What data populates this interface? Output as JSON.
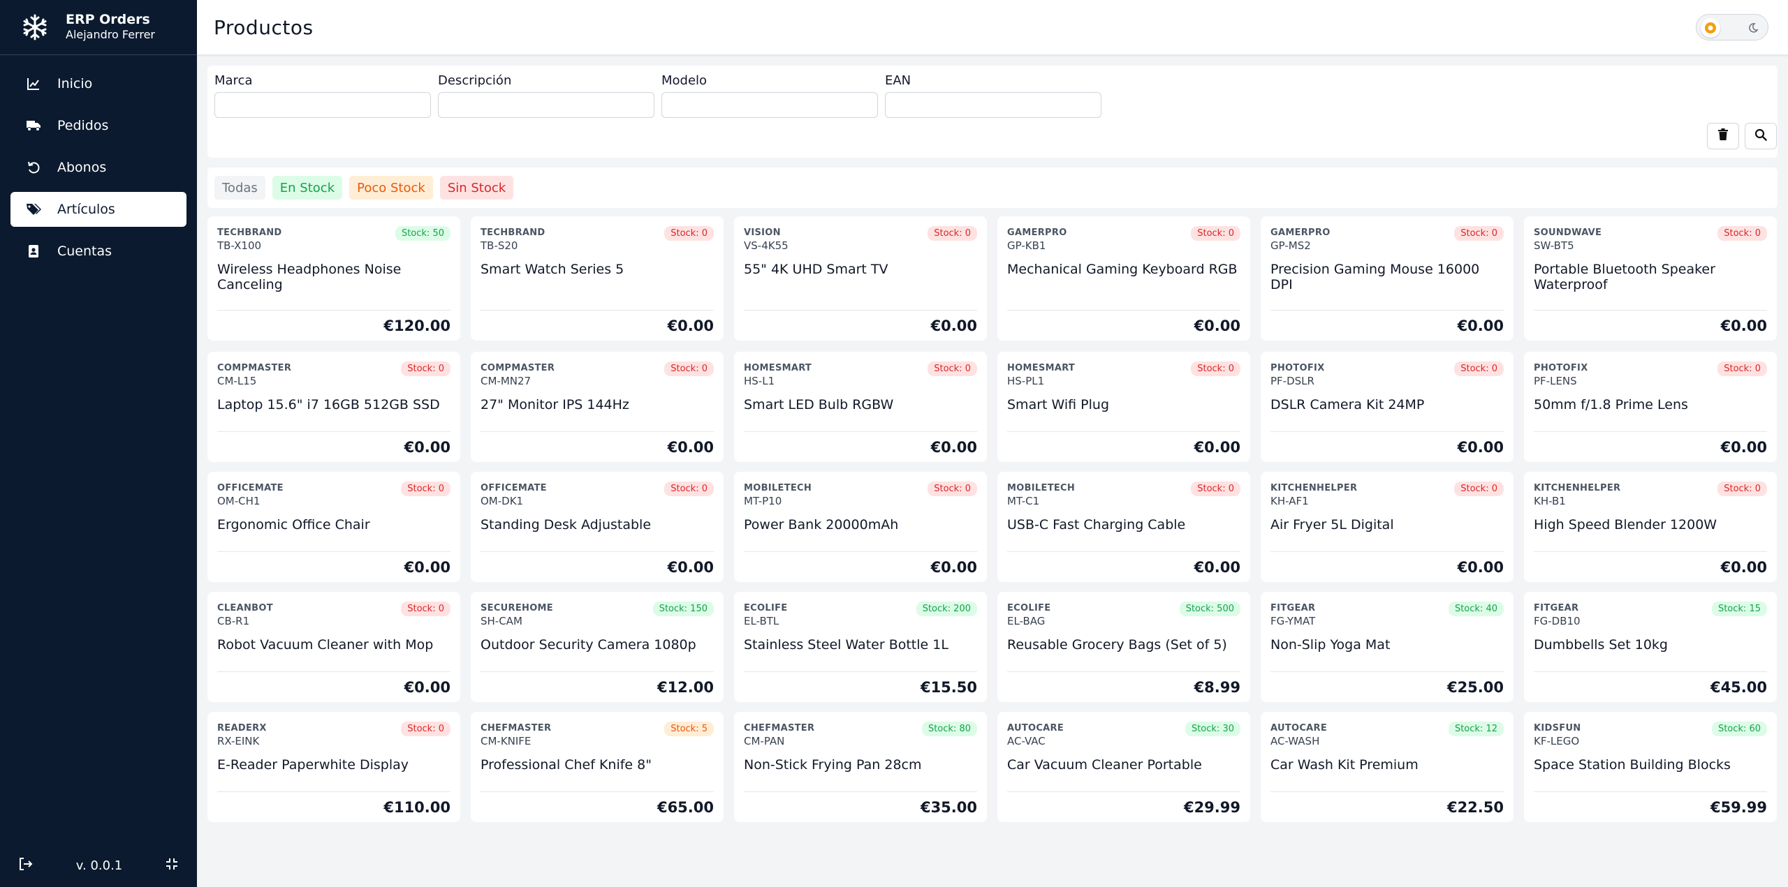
{
  "app": {
    "title": "ERP Orders",
    "user": "Alejandro Ferrer",
    "version": "v. 0.0.1"
  },
  "sidebar": {
    "items": [
      {
        "label": "Inicio",
        "icon": "chart-line-icon",
        "active": false
      },
      {
        "label": "Pedidos",
        "icon": "truck-icon",
        "active": false
      },
      {
        "label": "Abonos",
        "icon": "undo-icon",
        "active": false
      },
      {
        "label": "Artículos",
        "icon": "tags-icon",
        "active": true
      },
      {
        "label": "Cuentas",
        "icon": "contact-book-icon",
        "active": false
      }
    ]
  },
  "header": {
    "title": "Productos"
  },
  "filters": {
    "fields": [
      {
        "label": "Marca",
        "value": "",
        "placeholder": ""
      },
      {
        "label": "Descripción",
        "value": "",
        "placeholder": ""
      },
      {
        "label": "Modelo",
        "value": "",
        "placeholder": ""
      },
      {
        "label": "EAN",
        "value": "",
        "placeholder": ""
      }
    ]
  },
  "chips": [
    {
      "label": "Todas",
      "bg": "#f3f4f6",
      "color": "#6b7280"
    },
    {
      "label": "En Stock",
      "bg": "#dcfce7",
      "color": "#16a34a"
    },
    {
      "label": "Poco Stock",
      "bg": "#ffedd5",
      "color": "#ea580c"
    },
    {
      "label": "Sin Stock",
      "bg": "#fee2e2",
      "color": "#dc2626"
    }
  ],
  "products": [
    {
      "brand": "TECHBRAND",
      "model": "TB-X100",
      "desc": "Wireless Headphones Noise Canceling",
      "stock": "Stock: 50",
      "status": "in",
      "price": "€120.00"
    },
    {
      "brand": "TECHBRAND",
      "model": "TB-S20",
      "desc": "Smart Watch Series 5",
      "stock": "Stock: 0",
      "status": "out",
      "price": "€0.00"
    },
    {
      "brand": "VISION",
      "model": "VS-4K55",
      "desc": "55\" 4K UHD Smart TV",
      "stock": "Stock: 0",
      "status": "out",
      "price": "€0.00"
    },
    {
      "brand": "GAMERPRO",
      "model": "GP-KB1",
      "desc": "Mechanical Gaming Keyboard RGB",
      "stock": "Stock: 0",
      "status": "out",
      "price": "€0.00"
    },
    {
      "brand": "GAMERPRO",
      "model": "GP-MS2",
      "desc": "Precision Gaming Mouse 16000 DPI",
      "stock": "Stock: 0",
      "status": "out",
      "price": "€0.00"
    },
    {
      "brand": "SOUNDWAVE",
      "model": "SW-BT5",
      "desc": "Portable Bluetooth Speaker Waterproof",
      "stock": "Stock: 0",
      "status": "out",
      "price": "€0.00"
    },
    {
      "brand": "COMPMASTER",
      "model": "CM-L15",
      "desc": "Laptop 15.6\" i7 16GB 512GB SSD",
      "stock": "Stock: 0",
      "status": "out",
      "price": "€0.00"
    },
    {
      "brand": "COMPMASTER",
      "model": "CM-MN27",
      "desc": "27\" Monitor IPS 144Hz",
      "stock": "Stock: 0",
      "status": "out",
      "price": "€0.00"
    },
    {
      "brand": "HOMESMART",
      "model": "HS-L1",
      "desc": "Smart LED Bulb RGBW",
      "stock": "Stock: 0",
      "status": "out",
      "price": "€0.00"
    },
    {
      "brand": "HOMESMART",
      "model": "HS-PL1",
      "desc": "Smart Wifi Plug",
      "stock": "Stock: 0",
      "status": "out",
      "price": "€0.00"
    },
    {
      "brand": "PHOTOFIX",
      "model": "PF-DSLR",
      "desc": "DSLR Camera Kit 24MP",
      "stock": "Stock: 0",
      "status": "out",
      "price": "€0.00"
    },
    {
      "brand": "PHOTOFIX",
      "model": "PF-LENS",
      "desc": "50mm f/1.8 Prime Lens",
      "stock": "Stock: 0",
      "status": "out",
      "price": "€0.00"
    },
    {
      "brand": "OFFICEMATE",
      "model": "OM-CH1",
      "desc": "Ergonomic Office Chair",
      "stock": "Stock: 0",
      "status": "out",
      "price": "€0.00"
    },
    {
      "brand": "OFFICEMATE",
      "model": "OM-DK1",
      "desc": "Standing Desk Adjustable",
      "stock": "Stock: 0",
      "status": "out",
      "price": "€0.00"
    },
    {
      "brand": "MOBILETECH",
      "model": "MT-P10",
      "desc": "Power Bank 20000mAh",
      "stock": "Stock: 0",
      "status": "out",
      "price": "€0.00"
    },
    {
      "brand": "MOBILETECH",
      "model": "MT-C1",
      "desc": "USB-C Fast Charging Cable",
      "stock": "Stock: 0",
      "status": "out",
      "price": "€0.00"
    },
    {
      "brand": "KITCHENHELPER",
      "model": "KH-AF1",
      "desc": "Air Fryer 5L Digital",
      "stock": "Stock: 0",
      "status": "out",
      "price": "€0.00"
    },
    {
      "brand": "KITCHENHELPER",
      "model": "KH-B1",
      "desc": "High Speed Blender 1200W",
      "stock": "Stock: 0",
      "status": "out",
      "price": "€0.00"
    },
    {
      "brand": "CLEANBOT",
      "model": "CB-R1",
      "desc": "Robot Vacuum Cleaner with Mop",
      "stock": "Stock: 0",
      "status": "out",
      "price": "€0.00"
    },
    {
      "brand": "SECUREHOME",
      "model": "SH-CAM",
      "desc": "Outdoor Security Camera 1080p",
      "stock": "Stock: 150",
      "status": "in",
      "price": "€12.00"
    },
    {
      "brand": "ECOLIFE",
      "model": "EL-BTL",
      "desc": "Stainless Steel Water Bottle 1L",
      "stock": "Stock: 200",
      "status": "in",
      "price": "€15.50"
    },
    {
      "brand": "ECOLIFE",
      "model": "EL-BAG",
      "desc": "Reusable Grocery Bags (Set of 5)",
      "stock": "Stock: 500",
      "status": "in",
      "price": "€8.99"
    },
    {
      "brand": "FITGEAR",
      "model": "FG-YMAT",
      "desc": "Non-Slip Yoga Mat",
      "stock": "Stock: 40",
      "status": "in",
      "price": "€25.00"
    },
    {
      "brand": "FITGEAR",
      "model": "FG-DB10",
      "desc": "Dumbbells Set 10kg",
      "stock": "Stock: 15",
      "status": "in",
      "price": "€45.00"
    },
    {
      "brand": "READERX",
      "model": "RX-EINK",
      "desc": "E-Reader Paperwhite Display",
      "stock": "Stock: 0",
      "status": "out",
      "price": "€110.00"
    },
    {
      "brand": "CHEFMASTER",
      "model": "CM-KNIFE",
      "desc": "Professional Chef Knife 8\"",
      "stock": "Stock: 5",
      "status": "low",
      "price": "€65.00"
    },
    {
      "brand": "CHEFMASTER",
      "model": "CM-PAN",
      "desc": "Non-Stick Frying Pan 28cm",
      "stock": "Stock: 80",
      "status": "in",
      "price": "€35.00"
    },
    {
      "brand": "AUTOCARE",
      "model": "AC-VAC",
      "desc": "Car Vacuum Cleaner Portable",
      "stock": "Stock: 30",
      "status": "in",
      "price": "€29.99"
    },
    {
      "brand": "AUTOCARE",
      "model": "AC-WASH",
      "desc": "Car Wash Kit Premium",
      "stock": "Stock: 12",
      "status": "in",
      "price": "€22.50"
    },
    {
      "brand": "KIDSFUN",
      "model": "KF-LEGO",
      "desc": "Space Station Building Blocks",
      "stock": "Stock: 60",
      "status": "in",
      "price": "€59.99"
    }
  ]
}
